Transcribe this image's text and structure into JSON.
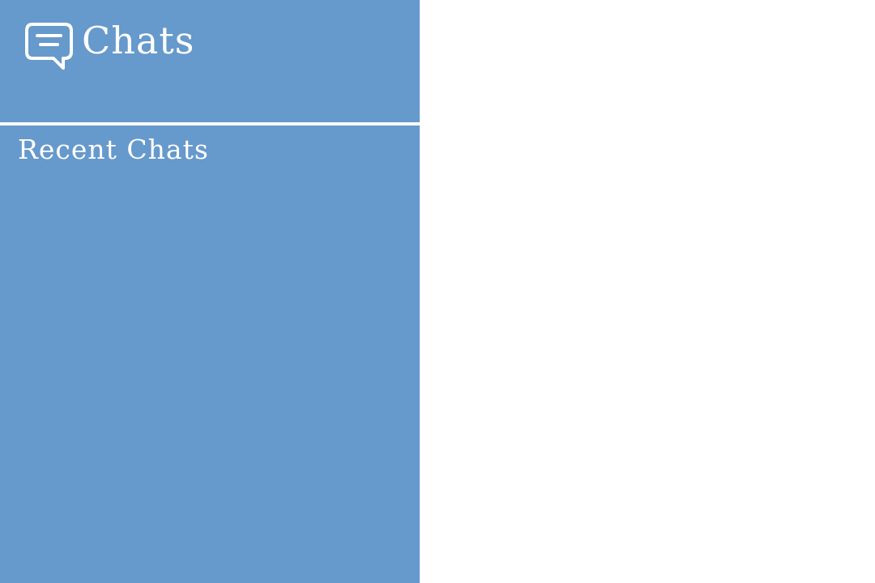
{
  "sidebar": {
    "header": {
      "icon": "chat-bubble-icon",
      "title": "Chats"
    },
    "recent": {
      "title": "Recent Chats",
      "items": []
    }
  },
  "colors": {
    "sidebar_background": "#6699cc",
    "foreground": "#ffffff",
    "main_background": "#ffffff"
  }
}
